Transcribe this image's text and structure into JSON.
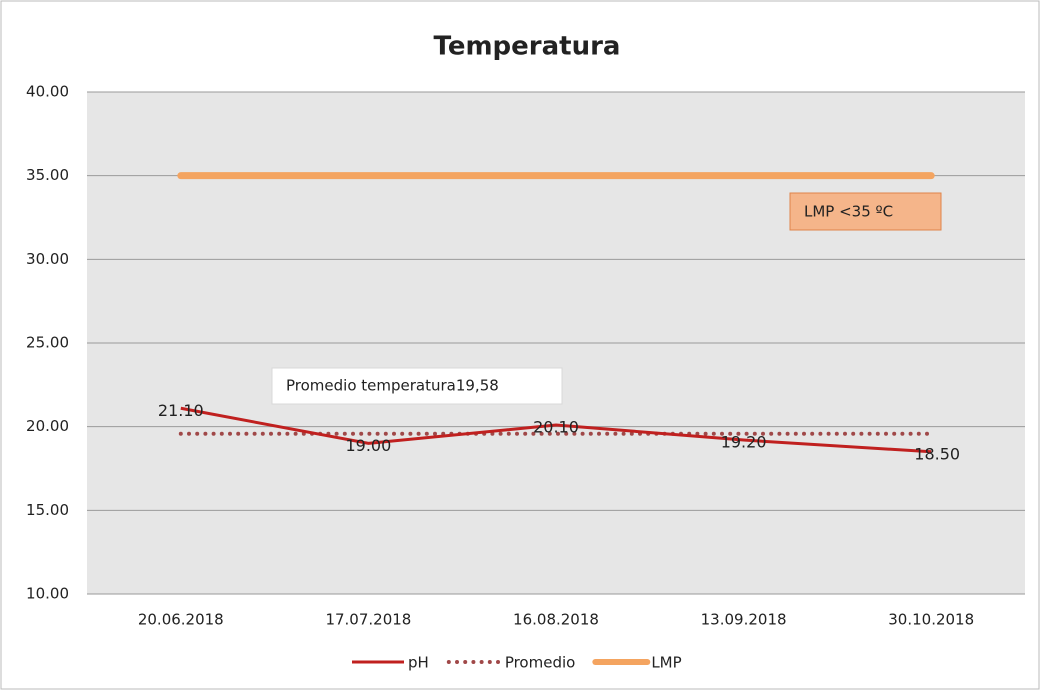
{
  "chart_data": {
    "type": "line",
    "title": "Temperatura",
    "categories": [
      "20.06.2018",
      "17.07.2018",
      "16.08.2018",
      "13.09.2018",
      "30.10.2018"
    ],
    "series": [
      {
        "name": "pH",
        "color": "#c0201f",
        "style": "solid",
        "values": [
          21.1,
          19.0,
          20.1,
          19.2,
          18.5
        ],
        "value_labels": [
          "21.10",
          "19.00",
          "20.10",
          "19.20",
          "18.50"
        ]
      },
      {
        "name": "Promedio",
        "color": "#a04848",
        "style": "dotted",
        "values": [
          19.58,
          19.58,
          19.58,
          19.58,
          19.58
        ]
      },
      {
        "name": "LMP",
        "color": "#f4a460",
        "style": "thick",
        "values": [
          35,
          35,
          35,
          35,
          35
        ]
      }
    ],
    "annotations": [
      "Promedio  temperatura19,58",
      "LMP  <35 ºC"
    ],
    "ylim": [
      10,
      40
    ],
    "yticks": [
      {
        "value": 10,
        "label": "10.00"
      },
      {
        "value": 15,
        "label": "15.00"
      },
      {
        "value": 20,
        "label": "20.00"
      },
      {
        "value": 25,
        "label": "25.00"
      },
      {
        "value": 30,
        "label": "30.00"
      },
      {
        "value": 35,
        "label": "35.00"
      },
      {
        "value": 40,
        "label": "40.00"
      }
    ],
    "grid": true,
    "legend": "bottom"
  }
}
